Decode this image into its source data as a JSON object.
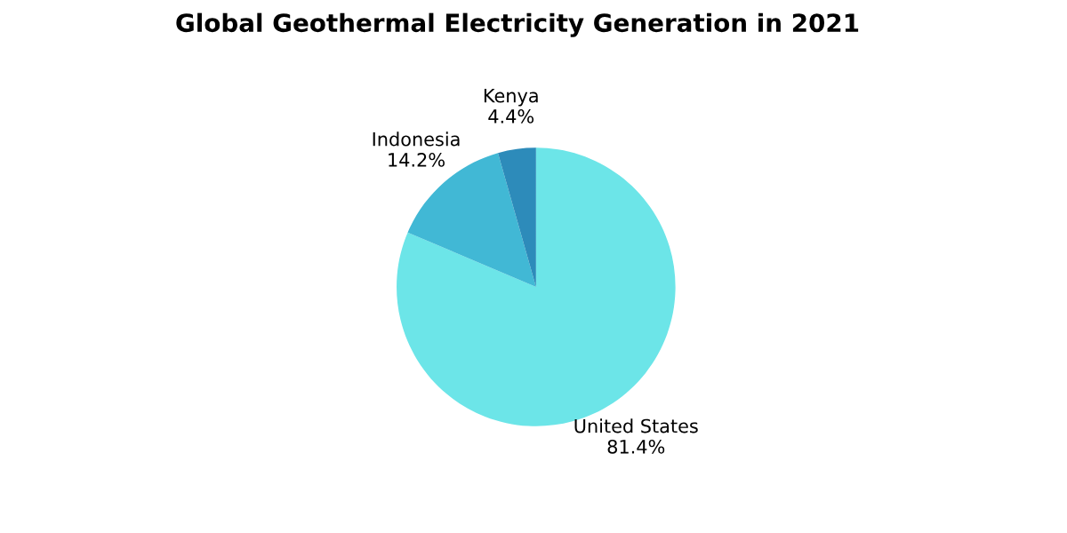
{
  "chart_data": {
    "type": "pie",
    "title": "Global Geothermal Electricity Generation in 2021",
    "categories": [
      "United States",
      "Indonesia",
      "Kenya"
    ],
    "values": [
      81.4,
      14.2,
      4.4
    ],
    "value_labels": [
      "81.4%",
      "14.2%",
      "4.4%"
    ],
    "colors": [
      "#6ce5e8",
      "#41b8d5",
      "#2d8bba"
    ],
    "legend": false
  }
}
